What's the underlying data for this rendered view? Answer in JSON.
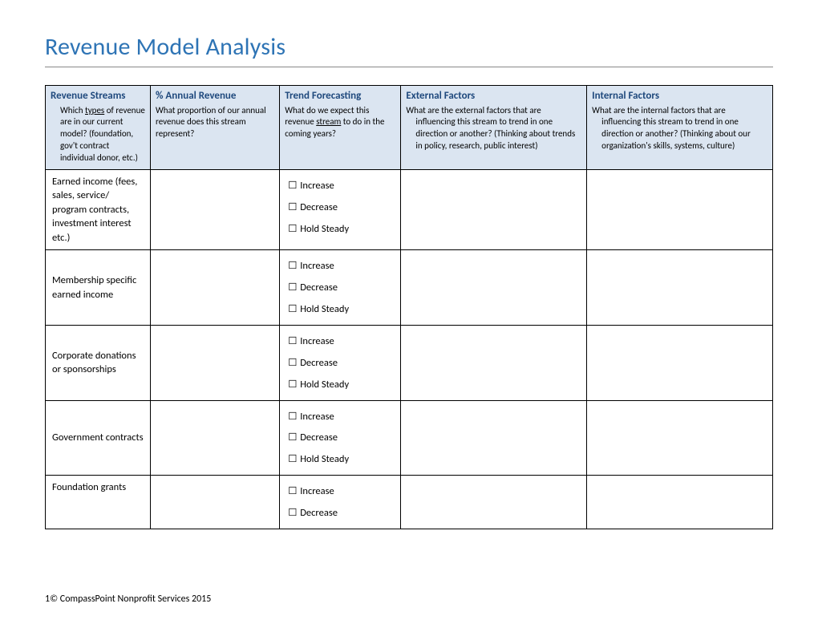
{
  "title": "Revenue Model Analysis",
  "columns": [
    {
      "title": "Revenue Streams",
      "sub_html": "<span class='sub-indent'>Which <span class='u'>types</span> of revenue are in our current model? (foundation, gov't contract individual donor, etc.)</span>",
      "width": "13%"
    },
    {
      "title": "% Annual Revenue",
      "sub_html": "What proportion of our annual revenue does this stream represent?",
      "width": "16%"
    },
    {
      "title": "Trend Forecasting",
      "sub_html": "What do we expect this revenue <span class='u'>stream</span> to do in the coming years?",
      "width": "15%"
    },
    {
      "title": "External Factors",
      "sub_html": "What are the external factors that are<span class='sub-indent'>influencing this stream to trend in one direction or another? (Thinking about trends in policy, research, public interest)</span>",
      "width": "23%"
    },
    {
      "title": "Internal Factors",
      "sub_html": "What are the internal factors that are<span class='sub-indent'>influencing this stream to trend in one direction or another? (Thinking about our organization's skills, systems, culture)</span>",
      "width": "23%"
    }
  ],
  "forecast_options": [
    "Increase",
    "Decrease",
    "Hold Steady"
  ],
  "rows": [
    {
      "label": "Earned income (fees, sales, service/ program contracts, investment interest etc.)",
      "show_options": 3
    },
    {
      "label": "Membership specific earned income",
      "show_options": 3,
      "vcenter": true
    },
    {
      "label": "Corporate donations or sponsorships",
      "show_options": 3,
      "vcenter": true
    },
    {
      "label": "Government contracts",
      "show_options": 3,
      "vcenter": true
    },
    {
      "label": "Foundation grants",
      "show_options": 2
    }
  ],
  "checkbox_glyph": "☐",
  "footer": "1© CompassPoint Nonprofit Services 2015",
  "colors": {
    "accent": "#2e74b5",
    "header_bg": "#dbe5f1",
    "col_title": "#1f497d"
  }
}
